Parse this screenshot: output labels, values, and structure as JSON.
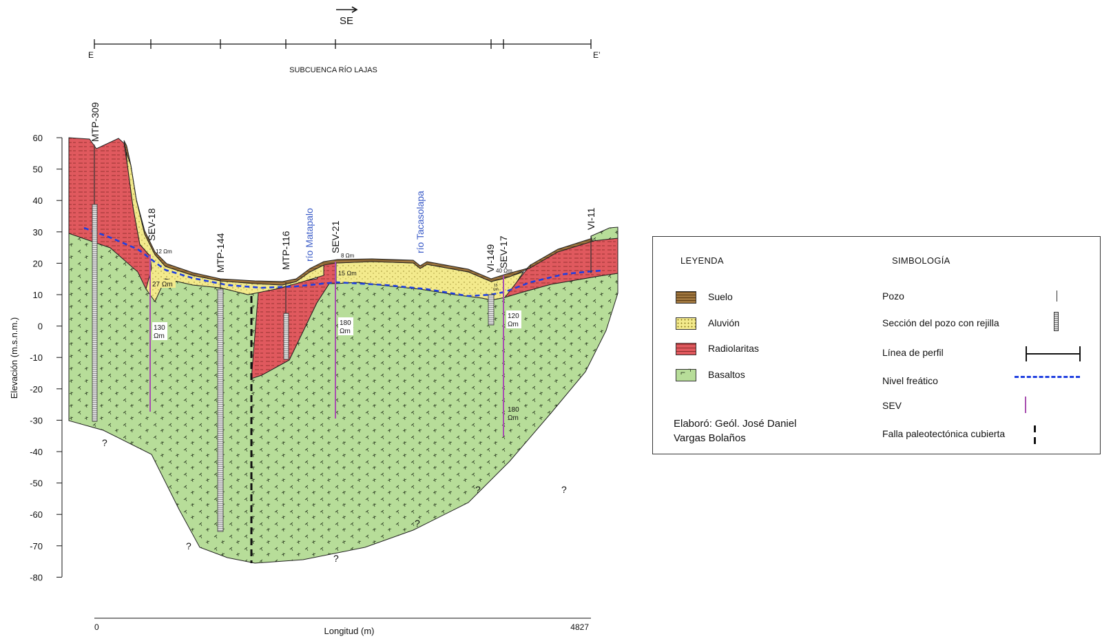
{
  "direction": {
    "label": "SE"
  },
  "profile": {
    "start": "E",
    "end": "E’",
    "subbasin": "SUBCUENCA RÍO LAJAS"
  },
  "axes": {
    "y_label": "Elevación (m.s.n.m.)",
    "y_ticks": [
      "60",
      "50",
      "40",
      "30",
      "20",
      "10",
      "0",
      "-10",
      "-20",
      "-30",
      "-40",
      "-50",
      "-60",
      "-70",
      "-80"
    ],
    "x_label": "Longitud (m)",
    "x_start": "0",
    "x_end": "4827"
  },
  "wells": [
    {
      "id": "MTP-309"
    },
    {
      "id": "SEV-18"
    },
    {
      "id": "MTP-144"
    },
    {
      "id": "MTP-116"
    },
    {
      "id": "SEV-21"
    },
    {
      "id": "VI-149"
    },
    {
      "id": "SEV-17"
    },
    {
      "id": "VI-11"
    }
  ],
  "rivers": {
    "matapalo": "río Matapalo",
    "tacasolapa": "río Tacasolapa"
  },
  "resistivity": {
    "sev18_top": "12 Ωm",
    "sev18_mid": "27 Ωm",
    "sev18_low": "130",
    "sev18_low_unit": "Ωm",
    "sev21_top": "8 Ωm",
    "sev21_mid": "15 Ωm",
    "sev21_low": "180",
    "sev21_low_unit": "Ωm",
    "sev17_top": "40 Ωm",
    "vi149_a": "15",
    "vi149_b": "Ωm",
    "sev17_mid": "120",
    "sev17_mid_unit": "Ωm",
    "sev17_low": "180",
    "sev17_low_unit": "Ωm"
  },
  "unknown_mark": "?",
  "legend": {
    "title": "LEYENDA",
    "items": [
      {
        "label": "Suelo",
        "color": "#a0773f"
      },
      {
        "label": "Aluvión",
        "color": "#f3ea8c"
      },
      {
        "label": "Radiolaritas",
        "color": "#e0595e"
      },
      {
        "label": "Basaltos",
        "color": "#b7dd99"
      }
    ],
    "author_line1": "Elaboró: Geól. José Daniel",
    "author_line2": "Vargas Bolaños"
  },
  "symbology": {
    "title": "SIMBOLOGÍA",
    "items": [
      {
        "label": "Pozo"
      },
      {
        "label": "Sección del pozo con rejilla"
      },
      {
        "label": "Línea de perfil"
      },
      {
        "label": "Nivel freático"
      },
      {
        "label": "SEV"
      },
      {
        "label": "Falla paleotectónica cubierta"
      }
    ]
  },
  "colors": {
    "soil": "#a0773f",
    "alluvium": "#f3ea8c",
    "radiolarite": "#e0595e",
    "basalt": "#b7dd99",
    "water_table": "#1f3fe0",
    "sev": "#a84fb0",
    "river_label": "#3a5bc7"
  }
}
